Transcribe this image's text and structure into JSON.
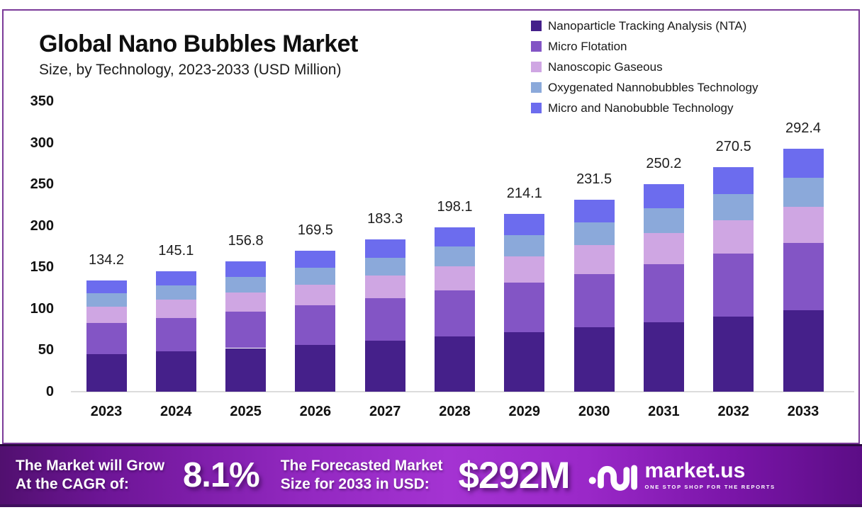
{
  "header": {
    "title": "Global Nano Bubbles Market",
    "subtitle": "Size, by Technology, 2023-2033 (USD Million)"
  },
  "chart_data": {
    "type": "bar",
    "stacked": true,
    "title": "Global Nano Bubbles Market Size, by Technology, 2023-2033 (USD Million)",
    "categories": [
      "2023",
      "2024",
      "2025",
      "2026",
      "2027",
      "2028",
      "2029",
      "2030",
      "2031",
      "2032",
      "2033"
    ],
    "totals": [
      134.2,
      145.1,
      156.8,
      169.5,
      183.3,
      198.1,
      214.1,
      231.5,
      250.2,
      270.5,
      292.4
    ],
    "series": [
      {
        "name": "Nanoparticle Tracking Analysis (NTA)",
        "color": "#45208a",
        "values": [
          45.0,
          48.6,
          52.5,
          56.7,
          61.3,
          66.3,
          71.6,
          77.4,
          83.7,
          90.5,
          97.8
        ]
      },
      {
        "name": "Micro Flotation",
        "color": "#8355c5",
        "values": [
          37.5,
          40.6,
          43.9,
          47.4,
          51.2,
          55.4,
          59.9,
          64.7,
          70.0,
          75.6,
          81.7
        ]
      },
      {
        "name": "Nanoscopic Gaseous",
        "color": "#cfa6e3",
        "values": [
          20.0,
          21.6,
          23.3,
          25.2,
          27.3,
          29.5,
          31.9,
          34.5,
          37.3,
          40.3,
          43.6
        ]
      },
      {
        "name": "Oxygenated Nannobubbles Technology",
        "color": "#8ba9da",
        "values": [
          16.0,
          17.3,
          18.7,
          20.2,
          21.8,
          23.6,
          25.4,
          27.5,
          29.7,
          32.1,
          34.7
        ]
      },
      {
        "name": "Micro and Nanobubble Technology",
        "color": "#6c6cee",
        "values": [
          15.7,
          17.0,
          18.4,
          20.0,
          21.7,
          23.3,
          25.3,
          27.4,
          29.5,
          32.0,
          34.6
        ]
      }
    ],
    "xlabel": "",
    "ylabel": "",
    "ylim": [
      0,
      350
    ],
    "yticks": [
      0,
      50,
      100,
      150,
      200,
      250,
      300,
      350
    ],
    "grid": false,
    "legend_position": "top-right"
  },
  "footer": {
    "cagr_label_line1": "The Market will Grow",
    "cagr_label_line2": "At the CAGR of:",
    "cagr_value": "8.1%",
    "forecast_label_line1": "The Forecasted Market",
    "forecast_label_line2": "Size for 2033 in USD:",
    "forecast_value": "$292M",
    "logo_text": "market.us",
    "logo_tagline": "ONE STOP SHOP FOR THE REPORTS"
  },
  "colors": {
    "frame_border": "#7b3a99",
    "banner_mid": "#a433d2",
    "banner_edge": "#51106f",
    "baseline": "#dcdcdc"
  }
}
